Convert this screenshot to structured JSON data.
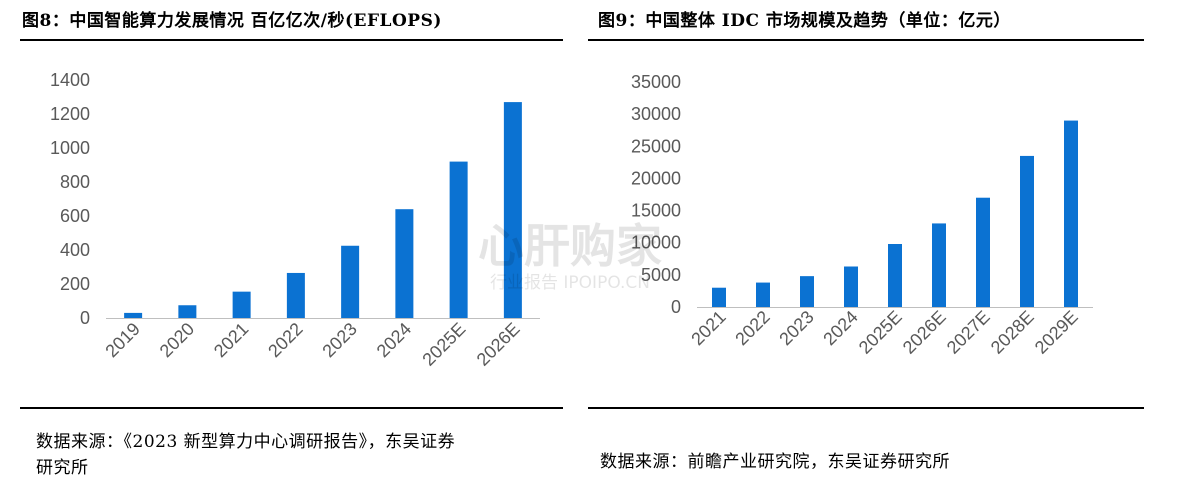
{
  "left": {
    "title": "图8：中国智能算力发展情况  百亿亿次/秒(EFLOPS)",
    "source_line1": "数据来源：《2023 新型算力中心调研报告》，东吴证券",
    "source_line2": "研究所"
  },
  "right": {
    "title": "图9：中国整体 IDC 市场规模及趋势（单位：亿元）",
    "source": "数据来源：前瞻产业研究院，东吴证券研究所"
  },
  "watermark": {
    "main": "心肝购家",
    "sub": "行业报告 IPOIPO.CN"
  },
  "colors": {
    "bar": "#0B72D2",
    "axis": "#BFBFBF",
    "tick_text": "#595959"
  },
  "chart_data": [
    {
      "type": "bar",
      "title": "中国智能算力发展情况",
      "ylabel": "百亿亿次/秒(EFLOPS)",
      "categories": [
        "2019",
        "2020",
        "2021",
        "2022",
        "2023",
        "2024",
        "2025E",
        "2026E"
      ],
      "values": [
        30,
        75,
        155,
        265,
        425,
        640,
        920,
        1270
      ],
      "ylim": [
        0,
        1400
      ],
      "yticks": [
        0,
        200,
        400,
        600,
        800,
        1000,
        1200,
        1400
      ],
      "grid": false
    },
    {
      "type": "bar",
      "title": "中国整体 IDC 市场规模及趋势",
      "ylabel": "亿元",
      "categories": [
        "2021",
        "2022",
        "2023",
        "2024",
        "2025E",
        "2026E",
        "2027E",
        "2028E",
        "2029E"
      ],
      "values": [
        3000,
        3800,
        4800,
        6300,
        9800,
        13000,
        17000,
        23500,
        29000
      ],
      "ylim": [
        0,
        35000
      ],
      "yticks": [
        0,
        5000,
        10000,
        15000,
        20000,
        25000,
        30000,
        35000
      ],
      "grid": false
    }
  ]
}
